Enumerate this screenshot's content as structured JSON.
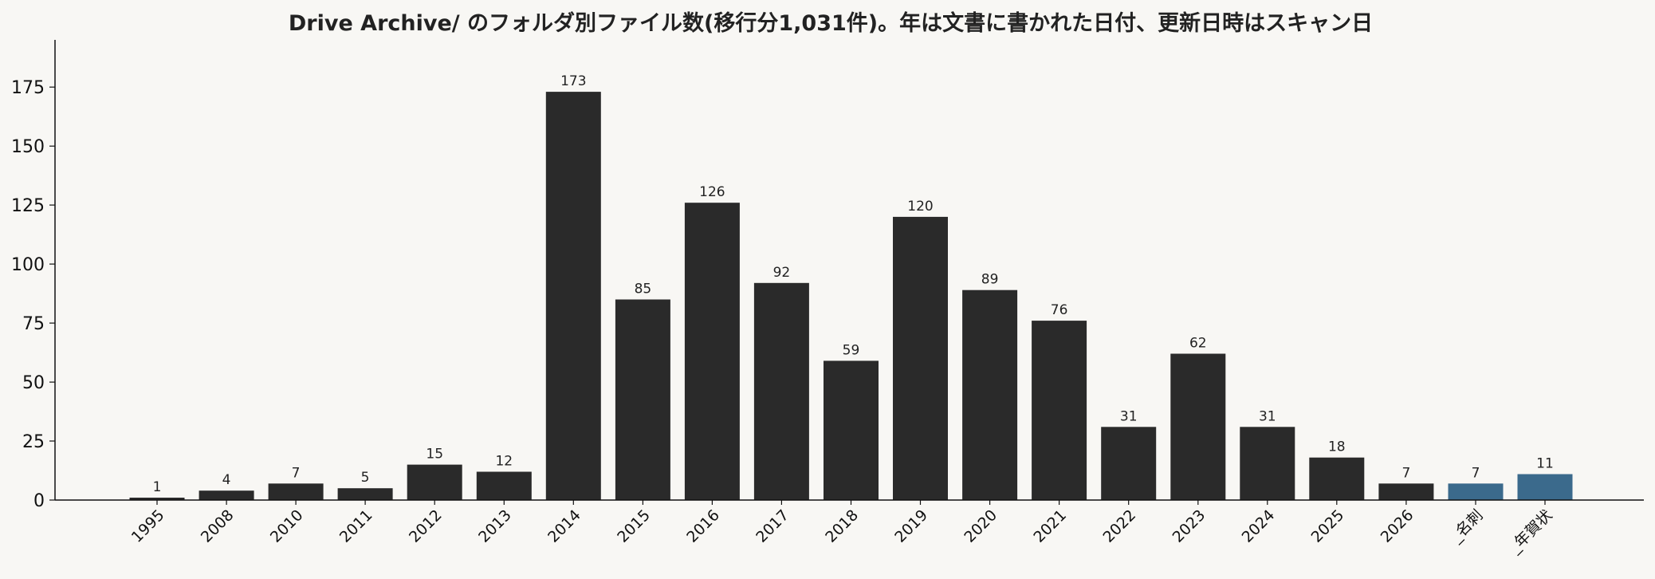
{
  "chart_data": {
    "type": "bar",
    "title": "Drive Archive/ のフォルダ別ファイル数(移行分1,031件)。年は文書に書かれた日付、更新日時はスキャン日",
    "xlabel": "",
    "ylabel": "",
    "categories": [
      "1995",
      "2008",
      "2010",
      "2011",
      "2012",
      "2013",
      "2014",
      "2015",
      "2016",
      "2017",
      "2018",
      "2019",
      "2020",
      "2021",
      "2022",
      "2023",
      "2024",
      "2025",
      "2026",
      "_名刺",
      "_年賀状"
    ],
    "values": [
      1,
      4,
      7,
      5,
      15,
      12,
      173,
      85,
      126,
      92,
      59,
      120,
      89,
      76,
      31,
      62,
      31,
      18,
      7,
      7,
      11
    ],
    "data_labels": [
      "1",
      "4",
      "7",
      "5",
      "15",
      "12",
      "173",
      "85",
      "126",
      "92",
      "59",
      "120",
      "89",
      "76",
      "31",
      "62",
      "31",
      "18",
      "7",
      "7",
      "11"
    ],
    "highlight": [
      false,
      false,
      false,
      false,
      false,
      false,
      false,
      false,
      false,
      false,
      false,
      false,
      false,
      false,
      false,
      false,
      false,
      false,
      false,
      true,
      true
    ],
    "ylim": [
      0,
      195
    ],
    "yticks": [
      0,
      25,
      50,
      75,
      100,
      125,
      150,
      175
    ],
    "ytick_labels": [
      "0",
      "25",
      "50",
      "75",
      "100",
      "125",
      "150",
      "175"
    ],
    "grid": false,
    "colors": {
      "background": "#f8f7f4",
      "bar": "#2a2a2a",
      "highlight_bar": "#3b6a8c",
      "axis": "#111111",
      "text": "#222222"
    }
  }
}
